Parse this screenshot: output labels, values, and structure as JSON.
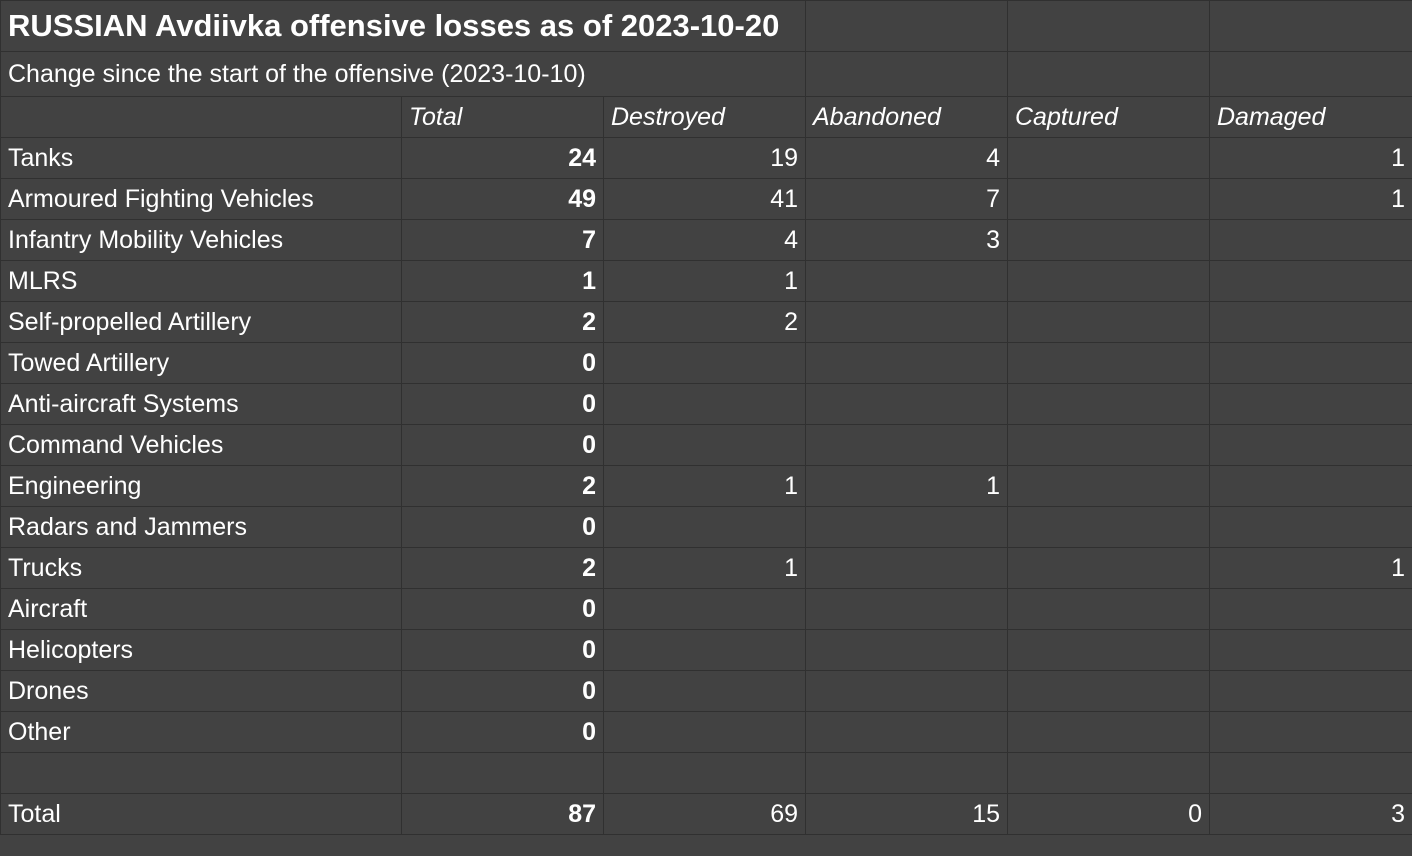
{
  "title": "RUSSIAN Avdiivka offensive losses as of 2023-10-20",
  "subtitle": "Change since the start of the offensive (2023-10-10)",
  "columns": [
    "",
    "Total",
    "Destroyed",
    "Abandoned",
    "Captured",
    "Damaged"
  ],
  "rows": [
    {
      "category": "Tanks",
      "total": "24",
      "destroyed": "19",
      "abandoned": "4",
      "captured": "",
      "damaged": "1"
    },
    {
      "category": "Armoured Fighting Vehicles",
      "total": "49",
      "destroyed": "41",
      "abandoned": "7",
      "captured": "",
      "damaged": "1"
    },
    {
      "category": "Infantry Mobility Vehicles",
      "total": "7",
      "destroyed": "4",
      "abandoned": "3",
      "captured": "",
      "damaged": ""
    },
    {
      "category": "MLRS",
      "total": "1",
      "destroyed": "1",
      "abandoned": "",
      "captured": "",
      "damaged": ""
    },
    {
      "category": "Self-propelled Artillery",
      "total": "2",
      "destroyed": "2",
      "abandoned": "",
      "captured": "",
      "damaged": ""
    },
    {
      "category": "Towed Artillery",
      "total": "0",
      "destroyed": "",
      "abandoned": "",
      "captured": "",
      "damaged": ""
    },
    {
      "category": "Anti-aircraft Systems",
      "total": "0",
      "destroyed": "",
      "abandoned": "",
      "captured": "",
      "damaged": ""
    },
    {
      "category": "Command Vehicles",
      "total": "0",
      "destroyed": "",
      "abandoned": "",
      "captured": "",
      "damaged": ""
    },
    {
      "category": "Engineering",
      "total": "2",
      "destroyed": "1",
      "abandoned": "1",
      "captured": "",
      "damaged": ""
    },
    {
      "category": "Radars and Jammers",
      "total": "0",
      "destroyed": "",
      "abandoned": "",
      "captured": "",
      "damaged": ""
    },
    {
      "category": "Trucks",
      "total": "2",
      "destroyed": "1",
      "abandoned": "",
      "captured": "",
      "damaged": "1"
    },
    {
      "category": "Aircraft",
      "total": "0",
      "destroyed": "",
      "abandoned": "",
      "captured": "",
      "damaged": ""
    },
    {
      "category": "Helicopters",
      "total": "0",
      "destroyed": "",
      "abandoned": "",
      "captured": "",
      "damaged": ""
    },
    {
      "category": "Drones",
      "total": "0",
      "destroyed": "",
      "abandoned": "",
      "captured": "",
      "damaged": ""
    },
    {
      "category": "Other",
      "total": "0",
      "destroyed": "",
      "abandoned": "",
      "captured": "",
      "damaged": ""
    }
  ],
  "totals": {
    "label": "Total",
    "total": "87",
    "destroyed": "69",
    "abandoned": "15",
    "captured": "0",
    "damaged": "3"
  },
  "colors": {
    "background": "#424242",
    "grid": "#303030",
    "text": "#ffffff"
  }
}
